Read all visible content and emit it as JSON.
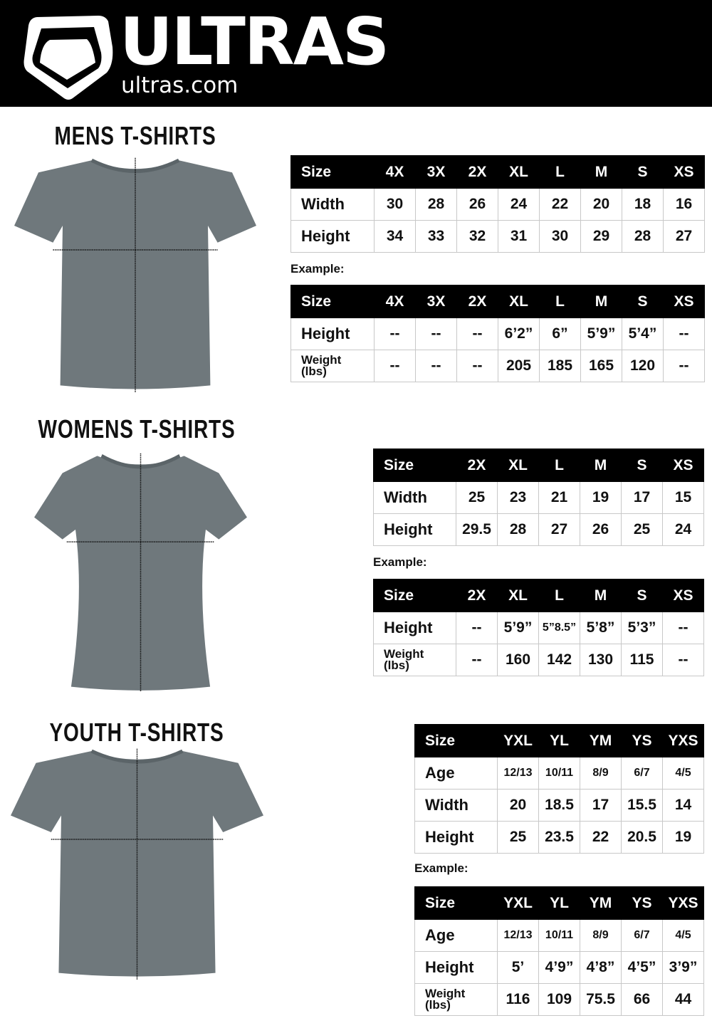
{
  "brand": {
    "name": "ULTRAS",
    "site": "ultras.com"
  },
  "colors": {
    "header_bg": "#000000",
    "shirt": "#6f787c"
  },
  "sections": [
    {
      "id": "mens",
      "title": "MENS T-SHIRTS",
      "example_label": "Example:",
      "size_table": {
        "header": [
          "Size",
          "4X",
          "3X",
          "2X",
          "XL",
          "L",
          "M",
          "S",
          "XS"
        ],
        "rows": [
          [
            "Width",
            "30",
            "28",
            "26",
            "24",
            "22",
            "20",
            "18",
            "16"
          ],
          [
            "Height",
            "34",
            "33",
            "32",
            "31",
            "30",
            "29",
            "28",
            "27"
          ]
        ]
      },
      "example_table": {
        "header": [
          "Size",
          "4X",
          "3X",
          "2X",
          "XL",
          "L",
          "M",
          "S",
          "XS"
        ],
        "rows": [
          [
            "Height",
            "--",
            "--",
            "--",
            "6’2”",
            "6”",
            "5’9”",
            "5’4”",
            "--"
          ],
          [
            "Weight\n(lbs)",
            "--",
            "--",
            "--",
            "205",
            "185",
            "165",
            "120",
            "--"
          ]
        ]
      }
    },
    {
      "id": "womens",
      "title": "WOMENS T-SHIRTS",
      "example_label": "Example:",
      "size_table": {
        "header": [
          "Size",
          "2X",
          "XL",
          "L",
          "M",
          "S",
          "XS"
        ],
        "rows": [
          [
            "Width",
            "25",
            "23",
            "21",
            "19",
            "17",
            "15"
          ],
          [
            "Height",
            "29.5",
            "28",
            "27",
            "26",
            "25",
            "24"
          ]
        ]
      },
      "example_table": {
        "header": [
          "Size",
          "2X",
          "XL",
          "L",
          "M",
          "S",
          "XS"
        ],
        "rows": [
          [
            "Height",
            "--",
            "5’9”",
            "5”8.5”",
            "5’8”",
            "5’3”",
            "--"
          ],
          [
            "Weight\n(lbs)",
            "--",
            "160",
            "142",
            "130",
            "115",
            "--"
          ]
        ]
      }
    },
    {
      "id": "youth",
      "title": "YOUTH T-SHIRTS",
      "example_label": "Example:",
      "size_table": {
        "header": [
          "Size",
          "YXL",
          "YL",
          "YM",
          "YS",
          "YXS"
        ],
        "rows": [
          [
            "Age",
            "12/13",
            "10/11",
            "8/9",
            "6/7",
            "4/5"
          ],
          [
            "Width",
            "20",
            "18.5",
            "17",
            "15.5",
            "14"
          ],
          [
            "Height",
            "25",
            "23.5",
            "22",
            "20.5",
            "19"
          ]
        ]
      },
      "example_table": {
        "header": [
          "Size",
          "YXL",
          "YL",
          "YM",
          "YS",
          "YXS"
        ],
        "rows": [
          [
            "Age",
            "12/13",
            "10/11",
            "8/9",
            "6/7",
            "4/5"
          ],
          [
            "Height",
            "5’",
            "4’9”",
            "4’8”",
            "4’5”",
            "3’9”"
          ],
          [
            "Weight\n(lbs)",
            "116",
            "109",
            "75.5",
            "66",
            "44"
          ]
        ]
      }
    }
  ]
}
